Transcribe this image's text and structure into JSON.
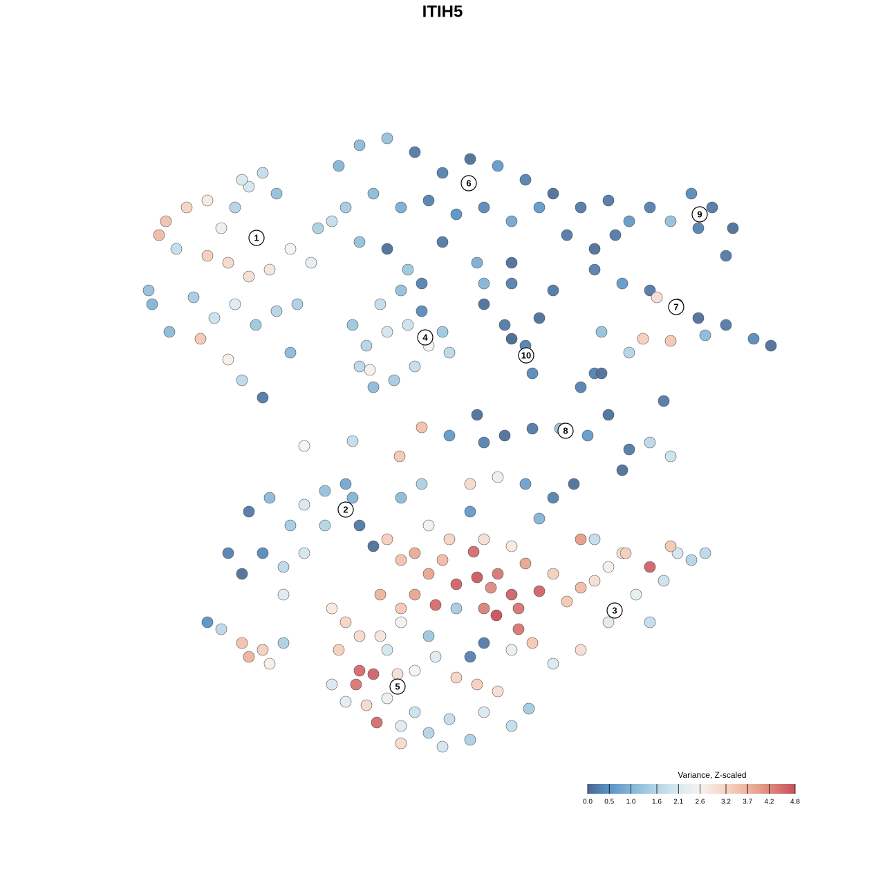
{
  "chart_data": {
    "type": "scatter",
    "title": "ITIH5",
    "x": [
      215,
      240,
      230,
      255,
      270,
      300,
      320,
      340,
      360,
      380,
      400,
      300,
      330,
      360,
      390,
      280,
      310,
      340,
      370,
      400,
      290,
      330,
      350,
      380,
      420,
      430,
      450,
      460,
      420,
      245,
      220,
      350,
      490,
      520,
      560,
      600,
      640,
      680,
      720,
      760,
      800,
      840,
      500,
      540,
      580,
      620,
      660,
      700,
      740,
      780,
      820,
      860,
      690,
      700,
      640,
      560,
      590,
      740,
      480,
      520,
      880,
      910,
      940,
      970,
      1000,
      1030,
      1060,
      1050,
      1010,
      890,
      860,
      900,
      940,
      980,
      1010,
      1050,
      1090,
      1115,
      950,
      930,
      970,
      1020,
      870,
      910,
      860,
      510,
      530,
      550,
      580,
      610,
      640,
      650,
      620,
      600,
      570,
      540,
      520,
      560,
      590,
      535,
      610,
      700,
      730,
      760,
      780,
      770,
      740,
      800,
      740,
      700,
      730,
      770,
      810,
      850,
      880,
      910,
      940,
      970,
      900,
      840,
      870,
      960,
      690,
      330,
      360,
      390,
      420,
      440,
      470,
      500,
      520,
      540,
      410,
      380,
      440,
      470,
      350,
      410,
      510,
      300,
      320,
      350,
      360,
      380,
      390,
      410,
      440,
      510,
      578,
      610,
      650,
      560,
      580,
      600,
      620,
      640,
      660,
      685,
      690,
      710,
      720,
      740,
      760,
      700,
      718,
      750,
      630,
      600,
      580,
      550,
      660,
      650,
      620,
      700,
      740,
      780,
      800,
      820,
      840,
      860,
      880,
      900,
      920,
      940,
      960,
      980,
      1000,
      1020,
      970,
      905,
      940,
      880,
      840,
      800,
      770,
      750,
      740,
      580,
      610,
      680,
      720,
      760,
      800,
      830,
      780,
      680,
      860,
      840,
      680,
      700,
      480,
      500,
      520,
      550,
      490,
      520,
      540,
      515,
      530,
      545,
      560,
      580,
      600,
      620,
      650,
      680,
      700,
      720,
      740,
      765,
      600,
      630,
      660,
      690,
      575,
      480,
      500,
      560,
      620,
      580,
      580,
      640
    ],
    "y": [
      420,
      320,
      340,
      360,
      300,
      290,
      330,
      300,
      270,
      250,
      280,
      370,
      380,
      400,
      390,
      430,
      460,
      440,
      470,
      450,
      490,
      520,
      550,
      575,
      510,
      440,
      380,
      330,
      360,
      480,
      440,
      260,
      240,
      210,
      200,
      220,
      250,
      230,
      240,
      260,
      280,
      300,
      300,
      280,
      300,
      290,
      310,
      300,
      320,
      300,
      340,
      360,
      380,
      410,
      350,
      360,
      390,
      380,
      320,
      350,
      290,
      320,
      300,
      320,
      280,
      300,
      330,
      370,
      330,
      340,
      390,
      410,
      420,
      440,
      460,
      470,
      490,
      500,
      430,
      490,
      493,
      485,
      480,
      510,
      540,
      470,
      500,
      440,
      420,
      450,
      480,
      510,
      500,
      530,
      550,
      560,
      530,
      480,
      470,
      535,
      410,
      440,
      470,
      500,
      460,
      540,
      490,
      420,
      410,
      640,
      630,
      620,
      620,
      630,
      600,
      650,
      640,
      660,
      680,
      560,
      540,
      580,
      600,
      800,
      740,
      720,
      760,
      730,
      710,
      700,
      760,
      790,
      820,
      800,
      800,
      760,
      830,
      860,
      720,
      900,
      910,
      930,
      950,
      940,
      960,
      930,
      645,
      638,
      660,
      618,
      630,
      780,
      810,
      800,
      830,
      810,
      845,
      798,
      835,
      850,
      830,
      860,
      815,
      880,
      890,
      880,
      875,
      860,
      880,
      860,
      880,
      780,
      760,
      780,
      790,
      855,
      830,
      870,
      850,
      840,
      820,
      800,
      860,
      820,
      840,
      800,
      810,
      800,
      790,
      800,
      900,
      900,
      940,
      960,
      930,
      910,
      940,
      720,
      700,
      700,
      690,
      700,
      720,
      700,
      750,
      740,
      780,
      780,
      950,
      930,
      880,
      900,
      920,
      920,
      940,
      970,
      975,
      990,
      1020,
      1045,
      1010,
      1050,
      1030,
      1060,
      1040,
      1070,
      1030,
      1000,
      1050,
      1025,
      970,
      950,
      980,
      990,
      975,
      990,
      1015,
      940,
      920,
      900,
      1075,
      1080
    ],
    "values": [
      1.2,
      3.5,
      3.6,
      1.8,
      3.2,
      2.8,
      2.4,
      1.6,
      2.0,
      1.8,
      1.2,
      3.3,
      3.1,
      3.0,
      2.9,
      1.4,
      1.9,
      2.2,
      1.3,
      1.6,
      3.4,
      2.7,
      1.7,
      0.2,
      1.1,
      1.5,
      2.3,
      1.5,
      2.6,
      1.1,
      1.0,
      2.1,
      1.0,
      1.1,
      1.2,
      0.2,
      0.3,
      0.1,
      0.6,
      0.3,
      0.1,
      0.2,
      1.4,
      1.1,
      0.9,
      0.3,
      0.5,
      0.4,
      0.8,
      0.6,
      0.2,
      0.1,
      0.9,
      1.0,
      0.2,
      0.1,
      1.3,
      0.1,
      1.8,
      1.2,
      0.2,
      0.6,
      0.3,
      1.2,
      0.4,
      0.2,
      0.1,
      0.2,
      0.3,
      0.2,
      0.3,
      0.6,
      0.2,
      0.5,
      0.1,
      0.2,
      0.4,
      0.1,
      3.0,
      3.3,
      3.4,
      1.1,
      1.2,
      1.6,
      0.3,
      1.3,
      1.6,
      1.8,
      1.2,
      0.4,
      1.3,
      1.7,
      2.5,
      1.8,
      1.4,
      1.1,
      1.7,
      2.0,
      1.9,
      2.7,
      0.3,
      0.1,
      0.2,
      0.3,
      0.1,
      0.4,
      0.0,
      0.2,
      0.3,
      0.3,
      0.1,
      0.2,
      1.2,
      0.6,
      0.1,
      0.2,
      1.7,
      1.9,
      0.1,
      0.3,
      0.1,
      0.2,
      0.1,
      0.3,
      0.2,
      1.1,
      1.4,
      2.1,
      1.2,
      0.8,
      0.2,
      0.1,
      1.7,
      0.4,
      2.0,
      1.6,
      0.1,
      2.2,
      1.0,
      0.5,
      1.7,
      3.5,
      3.7,
      3.3,
      2.7,
      1.5,
      2.6,
      1.8,
      3.4,
      3.5,
      0.6,
      3.3,
      3.5,
      3.8,
      3.9,
      3.6,
      4.6,
      4.5,
      4.7,
      4.2,
      4.4,
      4.6,
      3.9,
      4.3,
      4.8,
      4.4,
      4.5,
      3.9,
      3.4,
      3.7,
      1.4,
      3.2,
      2.5,
      3.0,
      2.8,
      4.6,
      3.3,
      3.4,
      3.6,
      3.0,
      2.7,
      2.9,
      2.3,
      4.6,
      1.9,
      2.0,
      1.6,
      1.7,
      3.4,
      3.3,
      1.8,
      2.2,
      3.0,
      2.1,
      3.4,
      4.4,
      2.4,
      1.1,
      1.5,
      3.1,
      2.4,
      0.7,
      0.3,
      0.1,
      1.0,
      0.6,
      1.8,
      4.0,
      0.3,
      0.2,
      2.8,
      3.2,
      3.1,
      2.9,
      3.3,
      4.5,
      4.6,
      4.4,
      3.1,
      4.5,
      2.4,
      2.2,
      1.9,
      1.6,
      1.8,
      1.5,
      2.1,
      3.0,
      1.8,
      1.4,
      2.6,
      2.2,
      3.2,
      3.3,
      3.0,
      2.1,
      2.3,
      2.0,
      1.3,
      2.5,
      3.1,
      2.0
    ],
    "xlim": [
      0,
      1280
    ],
    "ylim": [
      1280,
      0
    ],
    "point_stroke": "#4d4d4d",
    "colorscale": [
      {
        "value": 0,
        "color": "#4a6890"
      },
      {
        "value": 0.5,
        "color": "#5b93c6"
      },
      {
        "value": 1.3,
        "color": "#9dc7df"
      },
      {
        "value": 2.0,
        "color": "#d4e6f0"
      },
      {
        "value": 2.6,
        "color": "#f6f3f1"
      },
      {
        "value": 3.3,
        "color": "#f6cfbc"
      },
      {
        "value": 3.9,
        "color": "#e8a58e"
      },
      {
        "value": 4.8,
        "color": "#c9505e"
      }
    ],
    "colorbar": {
      "title": "Variance, Z-scaled",
      "lim": [
        0,
        4.8
      ],
      "ticks": [
        {
          "value": 0,
          "label": "0.0"
        },
        0.5,
        {
          "value": 1,
          "label": "1.0"
        },
        1.6,
        2.1,
        2.6,
        3.2,
        3.7,
        4.2,
        4.8
      ]
    },
    "cluster_labels": [
      {
        "label": "1",
        "x": 371,
        "y": 344
      },
      {
        "label": "2",
        "x": 500,
        "y": 737
      },
      {
        "label": "3",
        "x": 889,
        "y": 883
      },
      {
        "label": "4",
        "x": 615,
        "y": 488
      },
      {
        "label": "5",
        "x": 575,
        "y": 993
      },
      {
        "label": "6",
        "x": 678,
        "y": 265
      },
      {
        "label": "7",
        "x": 978,
        "y": 444
      },
      {
        "label": "8",
        "x": 818,
        "y": 623
      },
      {
        "label": "9",
        "x": 1012,
        "y": 310
      },
      {
        "label": "10",
        "x": 761,
        "y": 514
      }
    ]
  }
}
